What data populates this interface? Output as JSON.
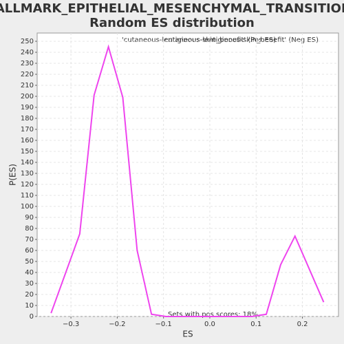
{
  "chart_data": {
    "type": "line",
    "title": "HALLMARK_EPITHELIAL_MESENCHYMAL_TRANSITION:",
    "subtitle": "Random ES distribution",
    "x_label": "ES",
    "y_label": "P(ES)",
    "pos_label": "'cutaneous-lentiginous-skin_benefit' (Pos ES)",
    "neg_label": "'cutaneous-lentiginous-skin_benefit' (Neg ES)",
    "pos_color": "#d03030",
    "neg_color": "#4040c0",
    "annotation": "Sets with pos scores: 18%",
    "x": [
      -0.343,
      -0.312,
      -0.281,
      -0.25,
      -0.219,
      -0.188,
      -0.157,
      -0.126,
      -0.095,
      -0.064,
      -0.033,
      -0.002,
      0.029,
      0.06,
      0.091,
      0.122,
      0.153,
      0.184,
      0.215,
      0.246
    ],
    "series": [
      {
        "name": "P(ES)",
        "color": "#ee44ee",
        "values": [
          3,
          39,
          75,
          201,
          245,
          199,
          60,
          2,
          0,
          0,
          0,
          0,
          0,
          0,
          0,
          2,
          47,
          73,
          43,
          13
        ]
      }
    ],
    "xlim": [
      -0.373,
      0.278
    ],
    "xticks": [
      {
        "value": -0.3,
        "label": "−0.3"
      },
      {
        "value": -0.2,
        "label": "−0.2"
      },
      {
        "value": -0.1,
        "label": "−0.1"
      },
      {
        "value": 0,
        "label": "0.0"
      },
      0.1,
      0.2
    ],
    "ylim": [
      0,
      257.5
    ],
    "yticks": [
      0,
      10,
      20,
      30,
      40,
      50,
      60,
      70,
      80,
      90,
      100,
      110,
      120,
      130,
      140,
      150,
      160,
      170,
      180,
      190,
      200,
      210,
      220,
      230,
      240,
      250
    ],
    "grid": true
  }
}
